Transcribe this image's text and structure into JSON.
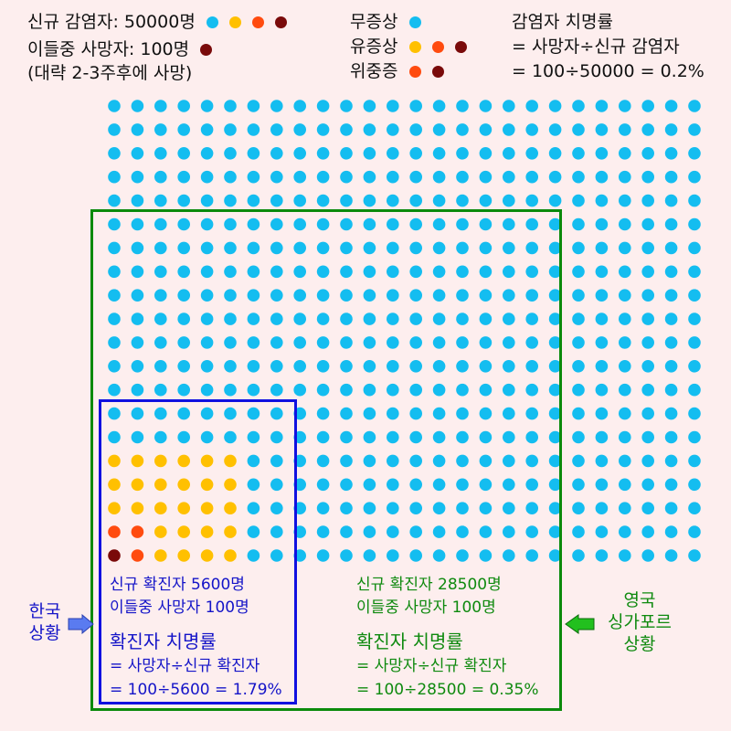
{
  "colors": {
    "asymptomatic": "#14bdf0",
    "symptomatic": "#ffc000",
    "severe": "#ff4b0f",
    "dead": "#7a0a0a",
    "green": "#0b8a0b",
    "blue": "#1010e0"
  },
  "legend": {
    "infected": "신규 감염자: 50000명",
    "deaths": "이들중 사망자: 100명",
    "deaths_note": "(대략 2-3주후에 사망)",
    "asymptomatic": "무증상",
    "symptomatic": "유증상",
    "severe": "위중증"
  },
  "ifr": {
    "title": "감염자 치명률",
    "formula": "= 사망자÷신규 감염자",
    "calc": "=  100÷50000 = 0.2%"
  },
  "korea": {
    "confirmed": "신규 확진자 5600명",
    "deaths": "이들중 사망자 100명",
    "cfr_title": "확진자 치명률",
    "formula": "= 사망자÷신규 확진자",
    "calc": "= 100÷5600 = 1.79%",
    "label": [
      "한국",
      "상황"
    ]
  },
  "uk_sg": {
    "confirmed": "신규 확진자 28500명",
    "deaths": "이들중 사망자 100명",
    "cfr_title": "확진자 치명률",
    "formula": "= 사망자÷신규 확진자",
    "calc": "= 100÷28500 = 0.35%",
    "label": [
      "영국",
      "싱가포르",
      "상황"
    ]
  },
  "grid": {
    "columns": 26,
    "rows": 20,
    "special_rows": [
      [
        "a",
        "a",
        "a",
        "a",
        "a",
        "a",
        "a"
      ],
      [
        "s",
        "s",
        "s",
        "s",
        "s",
        "s",
        "a"
      ],
      [
        "s",
        "s",
        "s",
        "s",
        "s",
        "s",
        "a"
      ],
      [
        "s",
        "s",
        "s",
        "s",
        "s",
        "s",
        "a"
      ],
      [
        "v",
        "v",
        "s",
        "s",
        "s",
        "s",
        "a"
      ],
      [
        "d",
        "v",
        "s",
        "s",
        "s",
        "s",
        "a"
      ]
    ]
  }
}
